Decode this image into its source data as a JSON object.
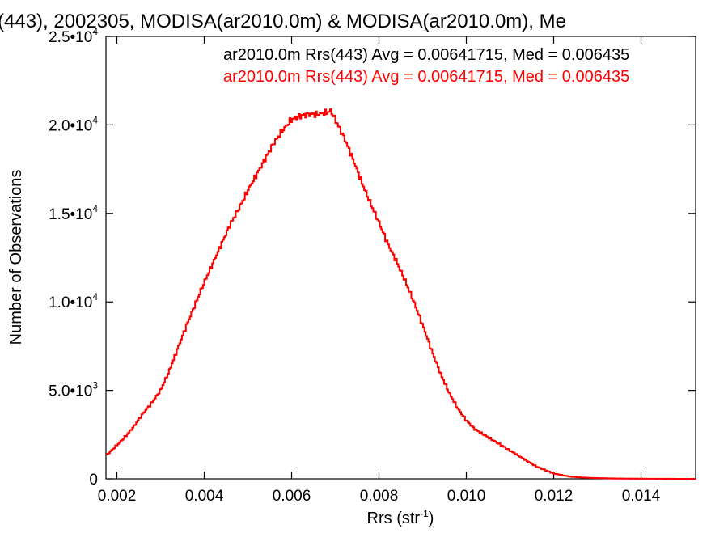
{
  "chart_data": {
    "type": "line",
    "title": "(443), 2002305, MODISA(ar2010.0m) & MODISA(ar2010.0m), Me",
    "xlabel": "Rrs (str",
    "xlabel_sup": "-1",
    "xlabel_suffix": ")",
    "ylabel": "Number of Observations",
    "xlim": [
      0.00175,
      0.01525
    ],
    "ylim": [
      0,
      25000
    ],
    "x_ticks": [
      {
        "value": 0.002,
        "label": "0.002"
      },
      {
        "value": 0.004,
        "label": "0.004"
      },
      {
        "value": 0.006,
        "label": "0.006"
      },
      {
        "value": 0.008,
        "label": "0.008"
      },
      {
        "value": 0.01,
        "label": "0.010"
      },
      {
        "value": 0.012,
        "label": "0.012"
      },
      {
        "value": 0.014,
        "label": "0.014"
      }
    ],
    "y_ticks": [
      {
        "value": 0,
        "mant": "0",
        "exp": ""
      },
      {
        "value": 5000,
        "mant": "5.0•10",
        "exp": "3"
      },
      {
        "value": 10000,
        "mant": "1.0•10",
        "exp": "4"
      },
      {
        "value": 15000,
        "mant": "1.5•10",
        "exp": "4"
      },
      {
        "value": 20000,
        "mant": "2.0•10",
        "exp": "4"
      },
      {
        "value": 25000,
        "mant": "2.5•10",
        "exp": "4"
      }
    ],
    "legend": [
      {
        "text": "ar2010.0m Rrs(443) Avg = 0.00641715, Med = 0.006435",
        "color": "#000000"
      },
      {
        "text": "ar2010.0m Rrs(443) Avg = 0.00641715, Med = 0.006435",
        "color": "#ff0000"
      }
    ],
    "legend_placement": "top-right",
    "series": [
      {
        "color": "#ff0000",
        "x": [
          0.00175,
          0.002,
          0.0022,
          0.0024,
          0.0026,
          0.0028,
          0.003,
          0.0032,
          0.0034,
          0.0036,
          0.0038,
          0.004,
          0.0042,
          0.0044,
          0.0046,
          0.0048,
          0.005,
          0.0052,
          0.0054,
          0.0056,
          0.0058,
          0.006,
          0.0062,
          0.0064,
          0.0066,
          0.0068,
          0.0069,
          0.007,
          0.0072,
          0.0074,
          0.0076,
          0.0078,
          0.008,
          0.0082,
          0.0084,
          0.0086,
          0.0088,
          0.009,
          0.0092,
          0.0094,
          0.0096,
          0.0098,
          0.01,
          0.0102,
          0.0104,
          0.0106,
          0.0108,
          0.011,
          0.0112,
          0.0114,
          0.0116,
          0.0118,
          0.012,
          0.0122,
          0.0124,
          0.0126,
          0.0128,
          0.013,
          0.0132,
          0.0134,
          0.0136,
          0.0138,
          0.014,
          0.0142,
          0.0144,
          0.0146,
          0.0148,
          0.015,
          0.01525
        ],
        "y": [
          1300,
          1900,
          2400,
          3000,
          3700,
          4300,
          5000,
          6100,
          7400,
          8700,
          9900,
          11100,
          12200,
          13300,
          14400,
          15300,
          16300,
          17200,
          18100,
          19000,
          19700,
          20300,
          20500,
          20600,
          20600,
          20700,
          20800,
          20300,
          19300,
          18100,
          16800,
          15600,
          14500,
          13300,
          12300,
          11200,
          10000,
          8700,
          7300,
          6000,
          4900,
          4000,
          3300,
          2800,
          2500,
          2200,
          1900,
          1600,
          1300,
          1000,
          700,
          500,
          300,
          200,
          120,
          80,
          60,
          40,
          30,
          20,
          15,
          10,
          8,
          5,
          4,
          3,
          2,
          1,
          0
        ]
      }
    ]
  }
}
